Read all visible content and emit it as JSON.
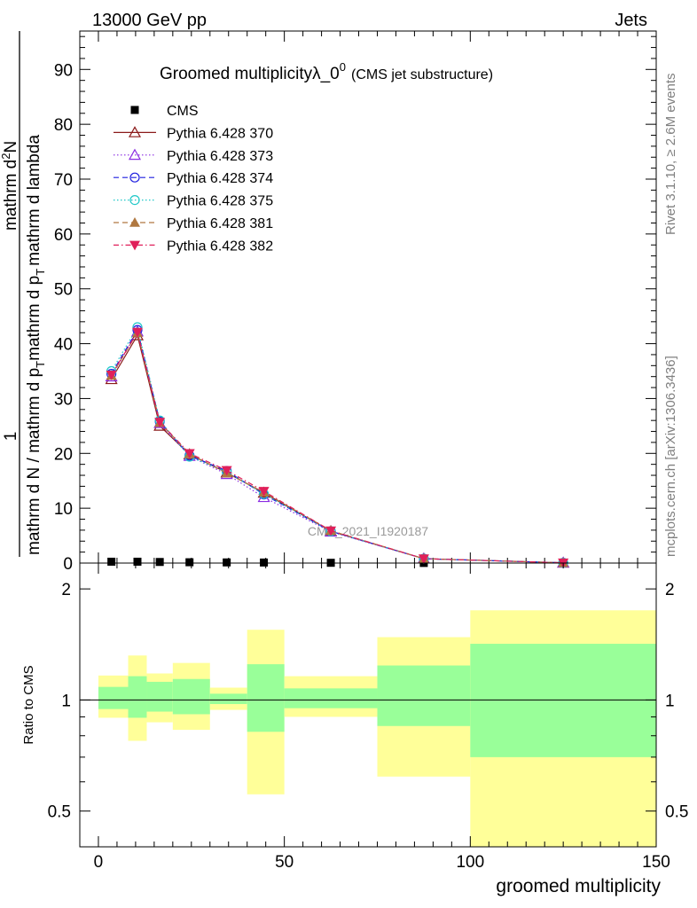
{
  "header": {
    "left": "13000 GeV pp",
    "right": "Jets",
    "side_top": "Rivet 3.1.10, ≥ 2.6M events",
    "side_bottom": "mcplots.cern.ch [arXiv:1306.3436]",
    "watermark": "CMS_2021_I1920187"
  },
  "chart_data": [
    {
      "type": "line",
      "title_main": "Groomed multiplicityλ_0",
      "title_sup": "0",
      "title_sub": "(CMS jet substructure)",
      "ylabel_numer": "1",
      "ylabel_denom_lines": [
        "mathrm d N / mathrm d p",
        "T",
        "mathrm d p",
        "T",
        "mathrm d lambda"
      ],
      "ylabel": "1 / (mathrm d N / mathrm d p_T) · mathrm d²N / (mathrm d p_T mathrm d lambda)",
      "ylabel_parts": {
        "numer": "1",
        "denom": "mathrm d N / mathrm d p",
        "frac_numer": "mathrm d",
        "frac_numer_sup": "2",
        "frac_numer_tail": "N",
        "frac_denom": "mathrm d p",
        "frac_denom_sub": "T",
        "frac_denom_tail": "mathrm d lambda",
        "sub_t": "T"
      },
      "xlim": [
        -5,
        150
      ],
      "ylim": [
        0,
        97
      ],
      "yticks": [
        0,
        10,
        20,
        30,
        40,
        50,
        60,
        70,
        80,
        90
      ],
      "legend_placement": "top-left",
      "x": [
        3.5,
        10.5,
        16.5,
        24.5,
        34.5,
        44.5,
        62.5,
        87.5,
        125
      ],
      "series": [
        {
          "name": "CMS",
          "color": "#000000",
          "marker": "square",
          "dash": "none",
          "values": [
            0.25,
            0.25,
            0.2,
            0.15,
            0.12,
            0.1,
            0.05,
            0.02,
            0.005
          ]
        },
        {
          "name": "Pythia 6.428 370",
          "color": "#8b1a1a",
          "marker": "triangle-open",
          "dash": "solid",
          "values": [
            33.5,
            41.5,
            25.0,
            19.8,
            16.5,
            12.8,
            5.8,
            0.8,
            0.05
          ]
        },
        {
          "name": "Pythia 6.428 373",
          "color": "#8a2be2",
          "marker": "triangle-open",
          "dash": "dot",
          "values": [
            34.0,
            42.2,
            25.5,
            19.5,
            16.2,
            12.0,
            5.7,
            0.8,
            0.05
          ]
        },
        {
          "name": "Pythia 6.428 374",
          "color": "#1f1fdf",
          "marker": "circle-open",
          "dash": "dash",
          "values": [
            34.5,
            42.5,
            25.8,
            19.6,
            16.8,
            12.5,
            5.8,
            0.8,
            0.05
          ]
        },
        {
          "name": "Pythia 6.428 375",
          "color": "#20c8c8",
          "marker": "circle-open",
          "dash": "dot",
          "values": [
            35.0,
            43.0,
            26.0,
            19.4,
            16.6,
            12.6,
            5.8,
            0.8,
            0.05
          ]
        },
        {
          "name": "Pythia 6.428 381",
          "color": "#b07840",
          "marker": "triangle-filled",
          "dash": "dash",
          "values": [
            34.2,
            42.0,
            25.6,
            19.9,
            16.4,
            12.9,
            5.9,
            0.8,
            0.05
          ]
        },
        {
          "name": "Pythia 6.428 382",
          "color": "#e0205a",
          "marker": "triangle-down-filled",
          "dash": "dashdot",
          "values": [
            34.3,
            42.1,
            25.7,
            20.0,
            16.9,
            13.1,
            5.9,
            0.8,
            0.05
          ]
        }
      ]
    },
    {
      "type": "area",
      "ylabel": "Ratio to CMS",
      "xlabel": "groomed multiplicity",
      "xlim": [
        -5,
        150
      ],
      "xticks": [
        0,
        50,
        100,
        150
      ],
      "ylim": [
        0.4,
        2.35
      ],
      "scale": "log",
      "yticks": [
        0.5,
        1,
        2
      ],
      "reference": 1,
      "bins": [
        {
          "x0": 0,
          "x1": 8,
          "stat_lo": 0.945,
          "stat_hi": 1.085,
          "tot_lo": 0.895,
          "tot_hi": 1.165
        },
        {
          "x0": 8,
          "x1": 13,
          "stat_lo": 0.895,
          "stat_hi": 1.16,
          "tot_lo": 0.775,
          "tot_hi": 1.32
        },
        {
          "x0": 13,
          "x1": 20,
          "stat_lo": 0.93,
          "stat_hi": 1.12,
          "tot_lo": 0.87,
          "tot_hi": 1.18
        },
        {
          "x0": 20,
          "x1": 30,
          "stat_lo": 0.915,
          "stat_hi": 1.14,
          "tot_lo": 0.83,
          "tot_hi": 1.26
        },
        {
          "x0": 30,
          "x1": 40,
          "stat_lo": 0.975,
          "stat_hi": 1.04,
          "tot_lo": 0.94,
          "tot_hi": 1.08
        },
        {
          "x0": 40,
          "x1": 50,
          "stat_lo": 0.82,
          "stat_hi": 1.25,
          "tot_lo": 0.555,
          "tot_hi": 1.55
        },
        {
          "x0": 50,
          "x1": 75,
          "stat_lo": 0.95,
          "stat_hi": 1.075,
          "tot_lo": 0.9,
          "tot_hi": 1.16
        },
        {
          "x0": 75,
          "x1": 100,
          "stat_lo": 0.85,
          "stat_hi": 1.24,
          "tot_lo": 0.62,
          "tot_hi": 1.48
        },
        {
          "x0": 100,
          "x1": 150,
          "stat_lo": 0.7,
          "stat_hi": 1.42,
          "tot_lo": 0.4,
          "tot_hi": 1.75
        }
      ],
      "colors": {
        "stat": "#99ff99",
        "total": "#ffff99"
      }
    }
  ]
}
